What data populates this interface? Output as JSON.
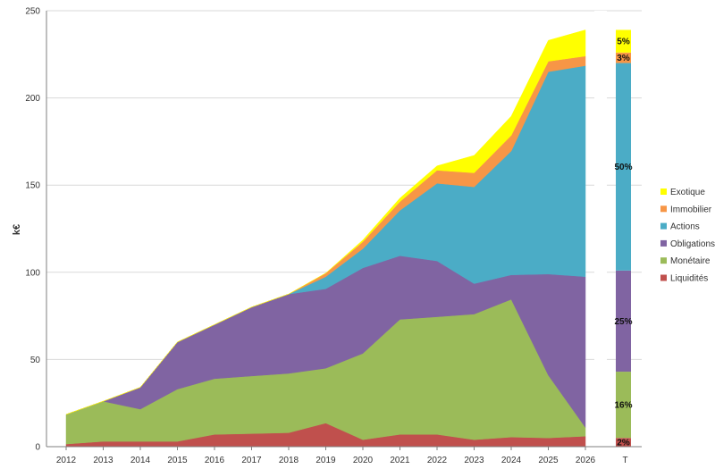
{
  "chart_data": {
    "type": "area",
    "ylabel": "k€",
    "ylim": [
      0,
      250
    ],
    "yticks": [
      "0",
      "50",
      "100",
      "150",
      "200",
      "250"
    ],
    "categories": [
      "2012",
      "2013",
      "2014",
      "2015",
      "2016",
      "2017",
      "2018",
      "2019",
      "2020",
      "2021",
      "2022",
      "2023",
      "2024",
      "2025",
      "2026"
    ],
    "legend_position": "right",
    "grid": true,
    "series": [
      {
        "name": "Liquidités",
        "color": "#c0504d",
        "values": [
          1.5,
          3,
          3,
          3,
          7,
          7.5,
          8,
          13.5,
          4,
          7,
          7,
          4,
          5.5,
          5,
          6
        ]
      },
      {
        "name": "Monétaire",
        "color": "#9bbb59",
        "values": [
          17,
          23,
          18.5,
          30,
          32,
          33,
          34,
          31.5,
          49.5,
          66,
          67.5,
          72,
          79,
          36,
          5
        ]
      },
      {
        "name": "Obligations",
        "color": "#8064a2",
        "values": [
          0,
          0,
          12.5,
          27,
          31,
          39.5,
          45.5,
          45.5,
          49,
          36.5,
          32,
          17.5,
          14,
          58,
          86.5
        ]
      },
      {
        "name": "Actions",
        "color": "#4bacc6",
        "values": [
          0,
          0,
          0,
          0,
          0,
          0,
          0,
          7,
          11,
          26,
          44.5,
          55.5,
          71,
          116,
          121
        ]
      },
      {
        "name": "Immobilier",
        "color": "#f79646",
        "values": [
          0,
          0,
          0,
          0,
          0,
          0,
          0,
          2,
          4,
          5,
          7.5,
          8,
          9,
          6,
          5.5
        ]
      },
      {
        "name": "Exotique",
        "color": "#ffff00",
        "values": [
          0,
          0,
          0,
          0,
          0,
          0,
          0,
          0,
          1,
          2,
          2.5,
          10,
          11,
          12,
          15
        ]
      }
    ],
    "total_bar": {
      "label": "T",
      "segments": [
        {
          "series": "Liquidités",
          "value": 5,
          "pct": "2%"
        },
        {
          "series": "Monétaire",
          "value": 38,
          "pct": "16%"
        },
        {
          "series": "Obligations",
          "value": 58,
          "pct": "25%"
        },
        {
          "series": "Actions",
          "value": 119,
          "pct": "50%"
        },
        {
          "series": "Immobilier",
          "value": 6,
          "pct": "3%"
        },
        {
          "series": "Exotique",
          "value": 13,
          "pct": "5%"
        }
      ]
    }
  }
}
